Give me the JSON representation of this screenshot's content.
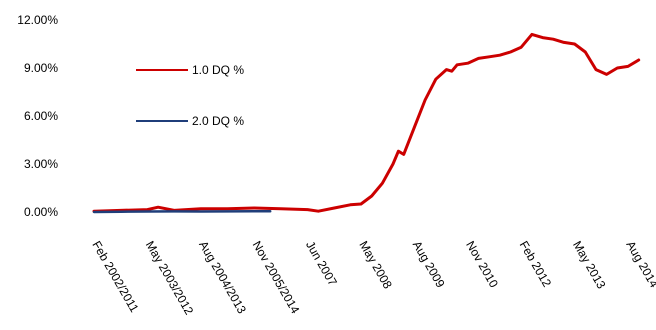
{
  "chart_data": {
    "type": "line",
    "title": "",
    "xlabel": "",
    "ylabel": "",
    "ylim": [
      0,
      12
    ],
    "y_unit": "%",
    "y_tick_values": [
      0,
      3,
      6,
      9,
      12
    ],
    "y_ticks": [
      "0.00%",
      "3.00%",
      "6.00%",
      "9.00%",
      "12.00%"
    ],
    "x_ticks": [
      "Feb 2002/2011",
      "May 2003/2012",
      "Aug 2004/2013",
      "Nov 2005/2014",
      "Jun 2007",
      "May 2008",
      "Aug 2009",
      "Nov 2010",
      "Feb 2012",
      "May 2013",
      "Aug 2014"
    ],
    "x_tick_positions": [
      0,
      10,
      20,
      30,
      40,
      50,
      60,
      70,
      80,
      90,
      100
    ],
    "grid": false,
    "legend_position": "top-left",
    "series": [
      {
        "name": "1.0 DQ %",
        "color": "#cc0000",
        "x": [
          0,
          5,
          10,
          12,
          15,
          20,
          25,
          30,
          35,
          40,
          42,
          45,
          48,
          50,
          52,
          54,
          56,
          57,
          58,
          60,
          62,
          64,
          66,
          67,
          68,
          70,
          72,
          74,
          76,
          78,
          80,
          82,
          84,
          86,
          88,
          90,
          92,
          94,
          96,
          98,
          100,
          102
        ],
        "values": [
          0.05,
          0.1,
          0.15,
          0.3,
          0.1,
          0.2,
          0.2,
          0.25,
          0.2,
          0.15,
          0.05,
          0.25,
          0.45,
          0.5,
          1.0,
          1.8,
          3.0,
          3.8,
          3.6,
          5.3,
          7.0,
          8.3,
          8.9,
          8.8,
          9.2,
          9.3,
          9.6,
          9.7,
          9.8,
          10.0,
          10.3,
          11.1,
          10.9,
          10.8,
          10.6,
          10.5,
          10.0,
          8.9,
          8.6,
          9.0,
          9.1,
          9.5
        ]
      },
      {
        "name": "2.0 DQ %",
        "color": "#1f3e7a",
        "x": [
          0,
          5,
          10,
          15,
          20,
          25,
          30,
          33
        ],
        "values": [
          0.0,
          0.02,
          0.03,
          0.04,
          0.03,
          0.04,
          0.05,
          0.05
        ]
      }
    ]
  }
}
